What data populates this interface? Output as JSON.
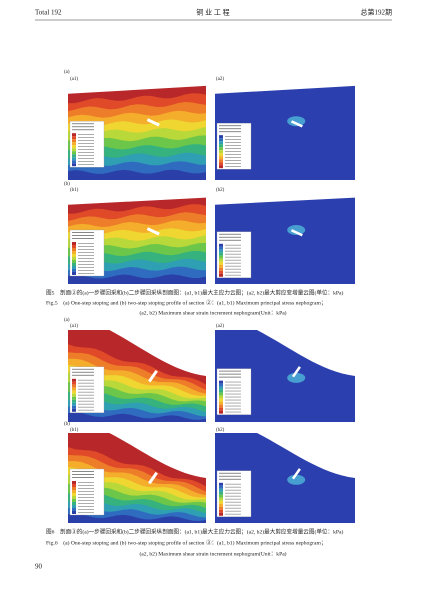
{
  "header": {
    "left": "Total 192",
    "center": "铜 业 工 程",
    "right": "总第192期"
  },
  "figures": [
    {
      "panels": {
        "a": "(a)",
        "a1": "(a1)",
        "a2": "(a2)",
        "b": "(b)",
        "b1": "(b1)",
        "b2": "(b2)"
      },
      "caption_cn": "图5　剖面②的(a)一步骤回采和(b)二步骤回采纵剖面图：(a1, b1)最大主应力云图；(a2, b2)最大剪应变增量云图(单位：kPa)",
      "caption_en_1": "Fig.5　(a) One-step stoping and (b) two-step stoping profile of section ②：(a1, b1) Maximum principal stress nephogram；",
      "caption_en_2": "(a2, b2) Maximum shear strain increment nephogram(Unit：kPa)"
    },
    {
      "panels": {
        "a": "(a)",
        "a1": "(a1)",
        "a2": "(a2)",
        "b": "(b)",
        "b1": "(b1)",
        "b2": "(b2)"
      },
      "caption_cn": "图6　剖面③的(a)一步骤回采和(b)二步骤回采纵剖面图：(a1, b1)最大主应力云图；(a2, b2)最大剪应变增量云图(单位：kPa)",
      "caption_en_1": "Fig.6　(a) One-step stoping and (b) two-step stoping profile of section ③：(a1, b1) Maximum principal stress nephogram；",
      "caption_en_2": "(a2, b2) Maximum shear strain increment nephogram(Unit：kPa)"
    }
  ],
  "page_number": "90"
}
